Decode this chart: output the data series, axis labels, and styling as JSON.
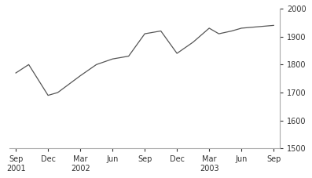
{
  "x_labels": [
    "Sep\n2001",
    "Dec",
    "Mar\n2002",
    "Jun",
    "Sep",
    "Dec",
    "Mar\n2003",
    "Jun",
    "Sep"
  ],
  "x_positions": [
    0,
    1,
    2,
    3,
    4,
    5,
    6,
    7,
    8
  ],
  "y_values": [
    1770,
    1800,
    1690,
    1700,
    1760,
    1800,
    1820,
    1830,
    1910,
    1920,
    1840,
    1880,
    1930,
    1910,
    1920,
    1930,
    1940
  ],
  "x_data": [
    0.0,
    0.4,
    1.0,
    1.3,
    2.0,
    2.5,
    3.0,
    3.5,
    4.0,
    4.5,
    5.0,
    5.5,
    6.0,
    6.3,
    6.7,
    7.0,
    8.0
  ],
  "line_color": "#555555",
  "line_width": 0.9,
  "ylim": [
    1500,
    2000
  ],
  "yticks": [
    1500,
    1600,
    1700,
    1800,
    1900,
    2000
  ],
  "xlim": [
    -0.2,
    8.2
  ],
  "background_color": "#ffffff"
}
